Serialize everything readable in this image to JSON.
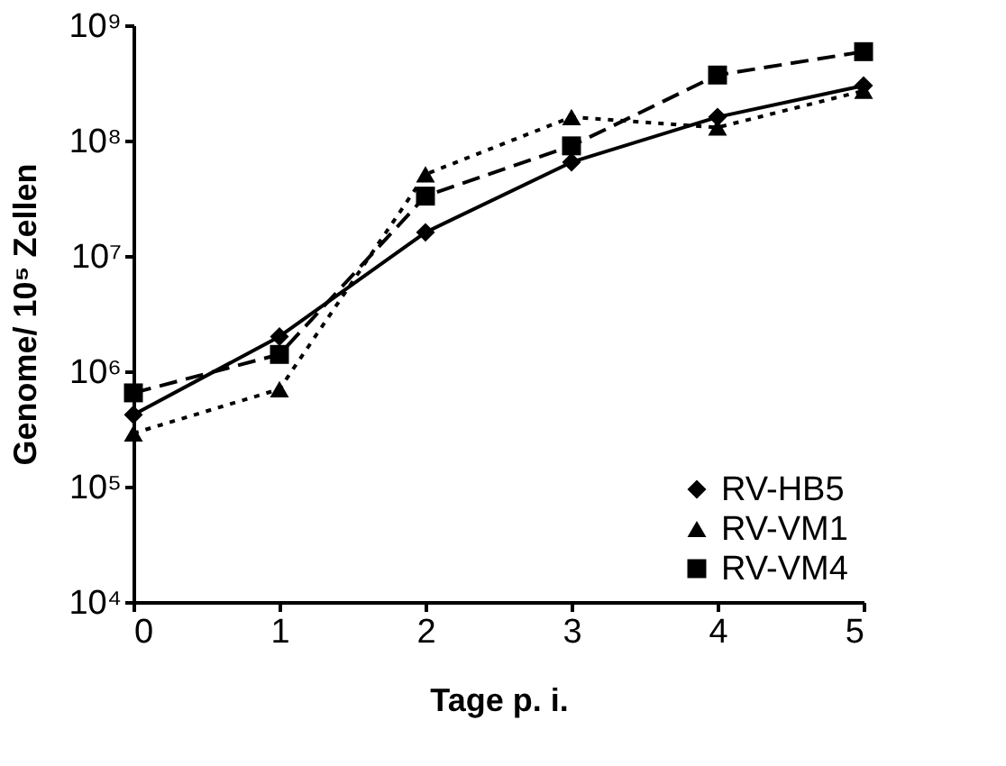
{
  "chart_data": {
    "type": "line",
    "xlabel": "Tage p. i.",
    "ylabel": "Genome/ 10⁵ Zellen",
    "x": [
      0,
      1,
      2,
      3,
      4,
      5
    ],
    "log": "y",
    "grid": false,
    "legend": "bottom right",
    "xlim": [
      0,
      5
    ],
    "xticks": [
      0,
      1,
      2,
      3,
      4,
      5
    ],
    "ylim": [
      10000,
      1000000000
    ],
    "yticks": [
      {
        "value": 10000,
        "label": "10⁴"
      },
      {
        "value": 100000,
        "label": "10⁵"
      },
      {
        "value": 1000000,
        "label": "10⁶"
      },
      {
        "value": 10000000,
        "label": "10⁷"
      },
      {
        "value": 100000000,
        "label": "10⁸"
      },
      {
        "value": 1000000000,
        "label": "10⁹"
      }
    ],
    "series": [
      {
        "name": "RV-HB5",
        "color": "#000000",
        "marker": "diamond",
        "line_style": "solid",
        "values": [
          420000,
          2000000,
          16000000,
          65000000,
          160000000,
          300000000
        ]
      },
      {
        "name": "RV-VM1",
        "color": "#000000",
        "marker": "triangle",
        "line_style": "dotted",
        "values": [
          290000,
          700000,
          51000000,
          160000000,
          130000000,
          270000000
        ]
      },
      {
        "name": "RV-VM4",
        "color": "#000000",
        "marker": "square",
        "line_style": "dashed",
        "values": [
          650000,
          1400000,
          33000000,
          90000000,
          370000000,
          590000000
        ]
      }
    ]
  }
}
